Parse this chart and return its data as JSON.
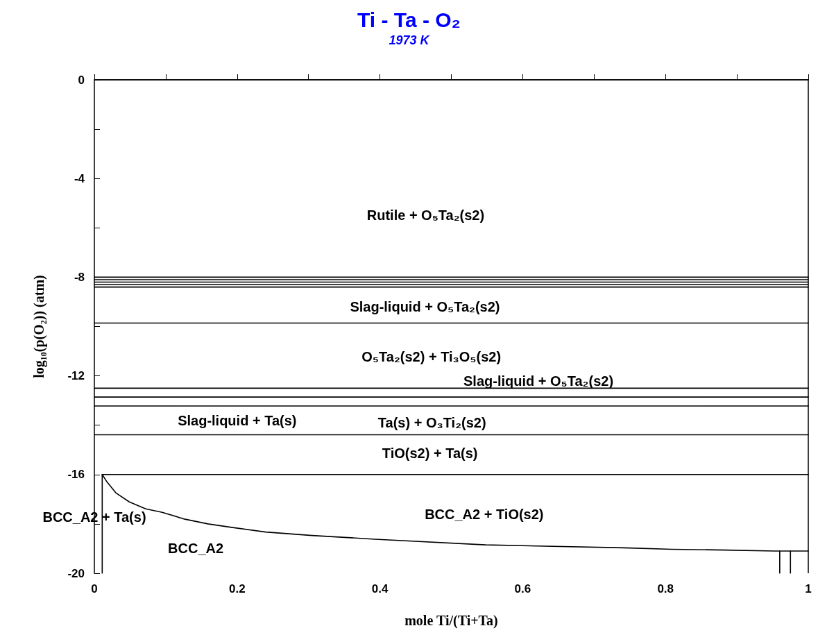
{
  "chart_data": {
    "type": "line",
    "title": "Ti - Ta - O₂",
    "subtitle": "1973 K",
    "xlabel": "mole Ti/(Ti+Ta)",
    "ylabel": "log₁₀(p(O₂)) (atm)",
    "xlim": [
      0,
      1
    ],
    "ylim": [
      -20,
      0
    ],
    "xticks": [
      0,
      {
        "value": 0.1,
        "label": null
      },
      0.2,
      {
        "value": 0.3,
        "label": null
      },
      0.4,
      {
        "value": 0.5,
        "label": null
      },
      0.6,
      {
        "value": 0.7,
        "label": null
      },
      0.8,
      {
        "value": 0.9,
        "label": null
      },
      1
    ],
    "yticks": [
      -20,
      {
        "value": -18,
        "label": null
      },
      -16,
      {
        "value": -14,
        "label": null
      },
      -12,
      {
        "value": -10,
        "label": null
      },
      -8,
      {
        "value": -6,
        "label": null
      },
      -4,
      {
        "value": -2,
        "label": null
      },
      0
    ],
    "grid": false,
    "marker": "none",
    "line_style": "solid",
    "series": [
      {
        "color": "#000000",
        "x": [
          0,
          1
        ],
        "values": [
          -8.0,
          -8.0
        ]
      },
      {
        "color": "#000000",
        "x": [
          0,
          1
        ],
        "values": [
          -8.1,
          -8.1
        ]
      },
      {
        "color": "#000000",
        "x": [
          0,
          1
        ],
        "values": [
          -8.2,
          -8.2
        ]
      },
      {
        "color": "#000000",
        "x": [
          0,
          1
        ],
        "values": [
          -8.3,
          -8.3
        ]
      },
      {
        "color": "#000000",
        "x": [
          0,
          1
        ],
        "values": [
          -8.4,
          -8.4
        ]
      },
      {
        "color": "#000000",
        "x": [
          0,
          1
        ],
        "values": [
          -9.86,
          -9.86
        ]
      },
      {
        "color": "#000000",
        "x": [
          0,
          1
        ],
        "values": [
          -12.5,
          -12.5
        ]
      },
      {
        "color": "#000000",
        "x": [
          0,
          1
        ],
        "values": [
          -12.86,
          -12.86
        ]
      },
      {
        "color": "#000000",
        "x": [
          0,
          1
        ],
        "values": [
          -13.22,
          -13.22
        ]
      },
      {
        "color": "#000000",
        "x": [
          0,
          1
        ],
        "values": [
          -14.39,
          -14.39
        ]
      },
      {
        "color": "#000000",
        "x": [
          0.011,
          1
        ],
        "values": [
          -16.0,
          -16.0
        ]
      },
      {
        "color": "#000000",
        "x": [
          0.011,
          0.011
        ],
        "values": [
          -20,
          -16.0
        ]
      },
      {
        "color": "#000000",
        "x": [
          0.011,
          0.017,
          0.03,
          0.049,
          0.072,
          0.095,
          0.127,
          0.159,
          0.192,
          0.24,
          0.305,
          0.393,
          0.548,
          0.742,
          0.809,
          0.885,
          0.953,
          1.0
        ],
        "values": [
          -16.0,
          -16.27,
          -16.74,
          -17.11,
          -17.39,
          -17.53,
          -17.81,
          -18.0,
          -18.14,
          -18.33,
          -18.47,
          -18.62,
          -18.85,
          -18.97,
          -19.03,
          -19.06,
          -19.1,
          -19.1
        ]
      },
      {
        "color": "#000000",
        "x": [
          0.96,
          0.96
        ],
        "values": [
          -20,
          -19.1
        ]
      },
      {
        "color": "#000000",
        "x": [
          0.975,
          0.975
        ],
        "values": [
          -20,
          -19.1
        ]
      }
    ],
    "annotations": [
      "Rutile + O₅Ta₂(s2)",
      "Slag-liquid + O₅Ta₂(s2)",
      "O₅Ta₂(s2) + Ti₃O₅(s2)",
      "Slag-liquid + O₅Ta₂(s2)",
      "Slag-liquid + Ta(s)",
      "Ta(s) + O₃Ti₂(s2)",
      "TiO(s2) + Ta(s)",
      "BCC_A2 + Ta(s)",
      "BCC_A2 + TiO(s2)",
      "BCC_A2"
    ]
  }
}
